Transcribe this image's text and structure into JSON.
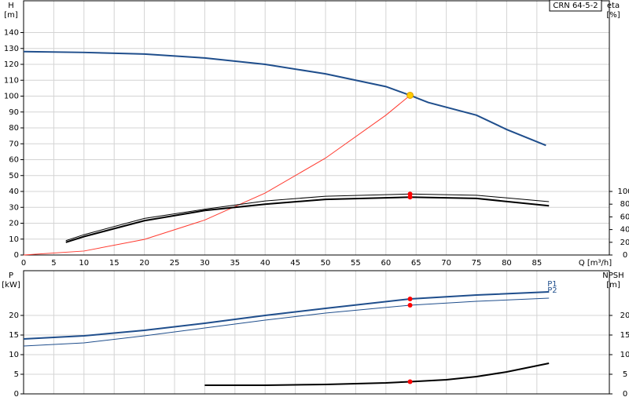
{
  "chart_data": [
    {
      "type": "line",
      "title": "CRN 64-5-2",
      "ylabel": [
        "H",
        "[m]"
      ],
      "y2label": [
        "eta",
        "[%]"
      ],
      "xlabel": "Q [m³/h]",
      "xlim": [
        0,
        97
      ],
      "xticks": [
        0,
        5,
        10,
        15,
        20,
        25,
        30,
        35,
        40,
        45,
        50,
        55,
        60,
        65,
        70,
        75,
        80,
        85
      ],
      "ylim": [
        0,
        160
      ],
      "yticks": [
        0,
        10,
        20,
        30,
        40,
        50,
        60,
        70,
        80,
        90,
        100,
        110,
        120,
        130,
        140
      ],
      "y2lim": [
        0,
        400
      ],
      "y2ticks": [
        0,
        20,
        40,
        60,
        80,
        100
      ],
      "grid": true,
      "xtick_labels": true,
      "series": [
        {
          "color": "#1f4e8c",
          "width": 2,
          "x": [
            0,
            10,
            20,
            30,
            40,
            50,
            60,
            64,
            67,
            75,
            80,
            86.5
          ],
          "values": [
            128,
            127.5,
            126.5,
            124,
            120,
            114,
            106,
            100.5,
            96,
            88,
            79,
            69
          ]
        },
        {
          "color": "#ff3b30",
          "width": 1,
          "x": [
            0,
            10,
            20,
            30,
            40,
            50,
            60,
            64
          ],
          "values": [
            0,
            2.5,
            9.8,
            22,
            39,
            61,
            88,
            100.5
          ]
        },
        {
          "color": "#000000",
          "width": 1,
          "axis": "y2",
          "x": [
            7,
            10,
            20,
            30,
            40,
            50,
            64,
            75,
            87
          ],
          "values": [
            22.5,
            32,
            57.5,
            72,
            85,
            92.5,
            96,
            94,
            84
          ]
        },
        {
          "color": "#000000",
          "width": 2,
          "axis": "y2",
          "x": [
            7,
            10,
            20,
            30,
            40,
            50,
            64,
            75,
            87
          ],
          "values": [
            20,
            29,
            54,
            70,
            80,
            87.5,
            91,
            89,
            77.5
          ]
        }
      ],
      "markers": [
        {
          "x": 64,
          "y": 100.5,
          "color": "#ffcc00"
        },
        {
          "x": 64,
          "y": 96,
          "axis": "y2",
          "color": "#ff0000"
        },
        {
          "x": 64,
          "y": 91,
          "axis": "y2",
          "color": "#ff0000"
        }
      ]
    },
    {
      "type": "line",
      "ylabel": [
        "P",
        "[kW]"
      ],
      "y2label": [
        "NPSH",
        "[m]"
      ],
      "xlim": [
        0,
        97
      ],
      "xticks": [
        0,
        5,
        10,
        15,
        20,
        25,
        30,
        35,
        40,
        45,
        50,
        55,
        60,
        65,
        70,
        75,
        80,
        85
      ],
      "ylim": [
        0,
        31.4
      ],
      "yticks": [
        0,
        5,
        10,
        15,
        20
      ],
      "y2lim": [
        0,
        31.4
      ],
      "y2ticks": [
        0,
        5,
        10,
        15,
        20
      ],
      "grid": true,
      "xtick_labels": false,
      "series": [
        {
          "name": "P1",
          "color": "#1f4e8c",
          "width": 2,
          "x": [
            0,
            10,
            20,
            30,
            40,
            50,
            64,
            75,
            87
          ],
          "values": [
            14,
            14.8,
            16.2,
            18,
            20,
            21.8,
            24.2,
            25.2,
            26
          ]
        },
        {
          "name": "P2",
          "color": "#1f4e8c",
          "width": 1,
          "x": [
            0,
            10,
            20,
            30,
            40,
            50,
            64,
            75,
            87
          ],
          "values": [
            12.2,
            13,
            14.8,
            16.8,
            18.8,
            20.6,
            22.6,
            23.6,
            24.4
          ]
        },
        {
          "color": "#000000",
          "width": 2,
          "axis": "y2",
          "x": [
            30,
            40,
            50,
            60,
            64,
            70,
            75,
            80,
            87
          ],
          "values": [
            2.2,
            2.2,
            2.4,
            2.8,
            3.1,
            3.6,
            4.4,
            5.6,
            7.8
          ]
        }
      ],
      "markers": [
        {
          "x": 64,
          "y": 24.2,
          "color": "#ff0000"
        },
        {
          "x": 64,
          "y": 22.6,
          "color": "#ff0000"
        },
        {
          "x": 64,
          "y": 3.1,
          "axis": "y2",
          "color": "#ff0000"
        }
      ]
    }
  ]
}
